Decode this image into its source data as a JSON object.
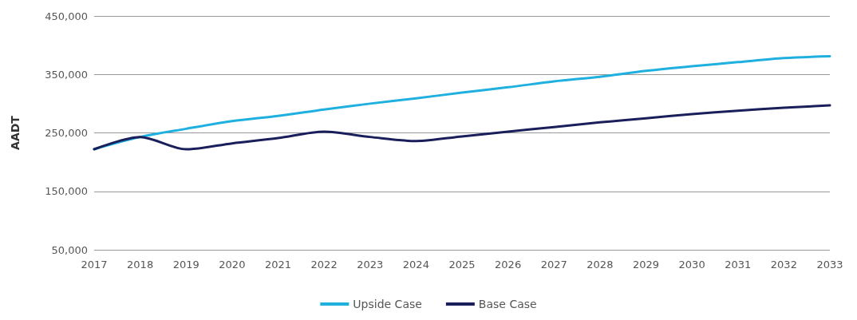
{
  "chart_data": {
    "type": "line",
    "ylabel": "AADT",
    "categories": [
      "2017",
      "2018",
      "2019",
      "2020",
      "2021",
      "2022",
      "2023",
      "2024",
      "2025",
      "2026",
      "2027",
      "2028",
      "2029",
      "2030",
      "2031",
      "2032",
      "2033"
    ],
    "series": [
      {
        "name": "Upside Case",
        "color": "#1fb0e0",
        "values": [
          222000,
          243000,
          257000,
          270000,
          279000,
          290000,
          300000,
          309000,
          319000,
          328000,
          338000,
          346000,
          356000,
          364000,
          371000,
          378000,
          381000
        ]
      },
      {
        "name": "Base Case",
        "color": "#1a1f5c",
        "values": [
          222000,
          243000,
          222000,
          232000,
          241000,
          252000,
          243000,
          236000,
          244000,
          252000,
          260000,
          268000,
          275000,
          282000,
          288000,
          293000,
          297000
        ]
      }
    ],
    "ylim": [
      50000,
      450000
    ],
    "yticks": [
      {
        "value": 50000,
        "label": "50,000"
      },
      {
        "value": 150000,
        "label": "150,000"
      },
      {
        "value": 250000,
        "label": "250,000"
      },
      {
        "value": 350000,
        "label": "350,000"
      },
      {
        "value": 450000,
        "label": "450,000"
      }
    ],
    "grid": "y",
    "legend": "bottom",
    "marker": "none",
    "line_style": "solid"
  }
}
